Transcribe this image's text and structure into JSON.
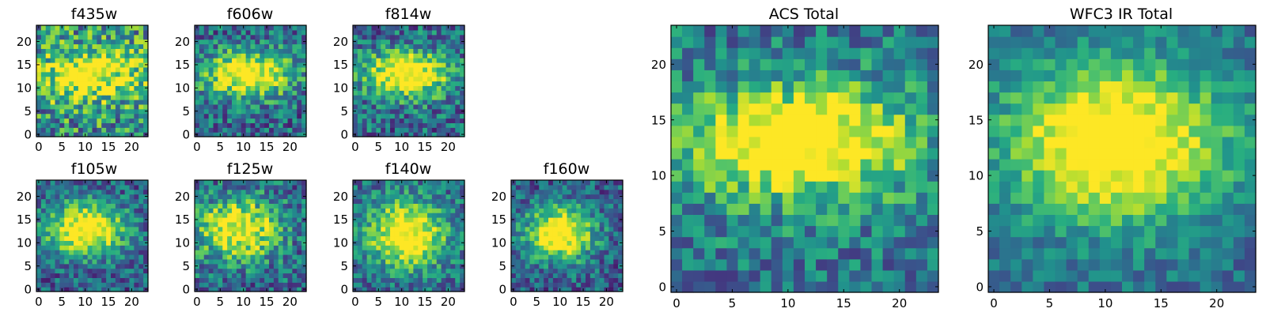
{
  "figure": {
    "background": "#ffffff",
    "colormap": "viridis"
  },
  "chart_data": [
    {
      "type": "heatmap",
      "title": "f435w",
      "grid_size": 24,
      "xlim": [
        0,
        24
      ],
      "ylim": [
        0,
        24
      ],
      "xticks": [
        0,
        5,
        10,
        15,
        20
      ],
      "yticks": [
        0,
        5,
        10,
        15,
        20
      ],
      "center": [
        11,
        13
      ],
      "spread": [
        8,
        4
      ],
      "peak": 0.62,
      "noise": 0.45,
      "base": 0.5,
      "seed": 11
    },
    {
      "type": "heatmap",
      "title": "f606w",
      "grid_size": 24,
      "xlim": [
        0,
        24
      ],
      "ylim": [
        0,
        24
      ],
      "xticks": [
        0,
        5,
        10,
        15,
        20
      ],
      "yticks": [
        0,
        5,
        10,
        15,
        20
      ],
      "center": [
        11,
        13
      ],
      "spread": [
        7,
        3.5
      ],
      "peak": 0.78,
      "noise": 0.35,
      "base": 0.35,
      "seed": 23
    },
    {
      "type": "heatmap",
      "title": "f814w",
      "grid_size": 24,
      "xlim": [
        0,
        24
      ],
      "ylim": [
        0,
        24
      ],
      "xticks": [
        0,
        5,
        10,
        15,
        20
      ],
      "yticks": [
        0,
        5,
        10,
        15,
        20
      ],
      "center": [
        11,
        13
      ],
      "spread": [
        6.5,
        3.5
      ],
      "peak": 0.82,
      "noise": 0.35,
      "base": 0.35,
      "seed": 37
    },
    {
      "type": "heatmap",
      "title": "f105w",
      "grid_size": 24,
      "xlim": [
        0,
        24
      ],
      "ylim": [
        0,
        24
      ],
      "xticks": [
        0,
        5,
        10,
        15,
        20
      ],
      "yticks": [
        0,
        5,
        10,
        15,
        20
      ],
      "center": [
        10,
        13
      ],
      "spread": [
        6,
        4
      ],
      "peak": 0.85,
      "noise": 0.3,
      "base": 0.3,
      "seed": 41
    },
    {
      "type": "heatmap",
      "title": "f125w",
      "grid_size": 24,
      "xlim": [
        0,
        24
      ],
      "ylim": [
        0,
        24
      ],
      "xticks": [
        0,
        5,
        10,
        15,
        20
      ],
      "yticks": [
        0,
        5,
        10,
        15,
        20
      ],
      "center": [
        9,
        13
      ],
      "spread": [
        6,
        4.5
      ],
      "peak": 0.75,
      "noise": 0.35,
      "base": 0.35,
      "seed": 53
    },
    {
      "type": "heatmap",
      "title": "f140w",
      "grid_size": 24,
      "xlim": [
        0,
        24
      ],
      "ylim": [
        0,
        24
      ],
      "xticks": [
        0,
        5,
        10,
        15,
        20
      ],
      "yticks": [
        0,
        5,
        10,
        15,
        20
      ],
      "center": [
        11,
        12
      ],
      "spread": [
        6,
        5
      ],
      "peak": 0.8,
      "noise": 0.3,
      "base": 0.35,
      "seed": 67
    },
    {
      "type": "heatmap",
      "title": "f160w",
      "grid_size": 24,
      "xlim": [
        0,
        24
      ],
      "ylim": [
        0,
        24
      ],
      "xticks": [
        0,
        5,
        10,
        15,
        20
      ],
      "yticks": [
        0,
        5,
        10,
        15,
        20
      ],
      "center": [
        10,
        12
      ],
      "spread": [
        5,
        4
      ],
      "peak": 0.9,
      "noise": 0.3,
      "base": 0.3,
      "seed": 79
    },
    {
      "type": "heatmap",
      "title": "ACS Total",
      "grid_size": 24,
      "xlim": [
        0,
        24
      ],
      "ylim": [
        0,
        24
      ],
      "xticks": [
        0,
        5,
        10,
        15,
        20
      ],
      "yticks": [
        0,
        5,
        10,
        15,
        20
      ],
      "center": [
        11,
        13
      ],
      "spread": [
        7,
        3.5
      ],
      "peak": 0.85,
      "noise": 0.3,
      "base": 0.4,
      "seed": 97
    },
    {
      "type": "heatmap",
      "title": "WFC3 IR Total",
      "grid_size": 24,
      "xlim": [
        0,
        24
      ],
      "ylim": [
        0,
        24
      ],
      "xticks": [
        0,
        5,
        10,
        15,
        20
      ],
      "yticks": [
        0,
        5,
        10,
        15,
        20
      ],
      "center": [
        11,
        13
      ],
      "spread": [
        7,
        5
      ],
      "peak": 0.85,
      "noise": 0.2,
      "base": 0.35,
      "seed": 113
    }
  ]
}
